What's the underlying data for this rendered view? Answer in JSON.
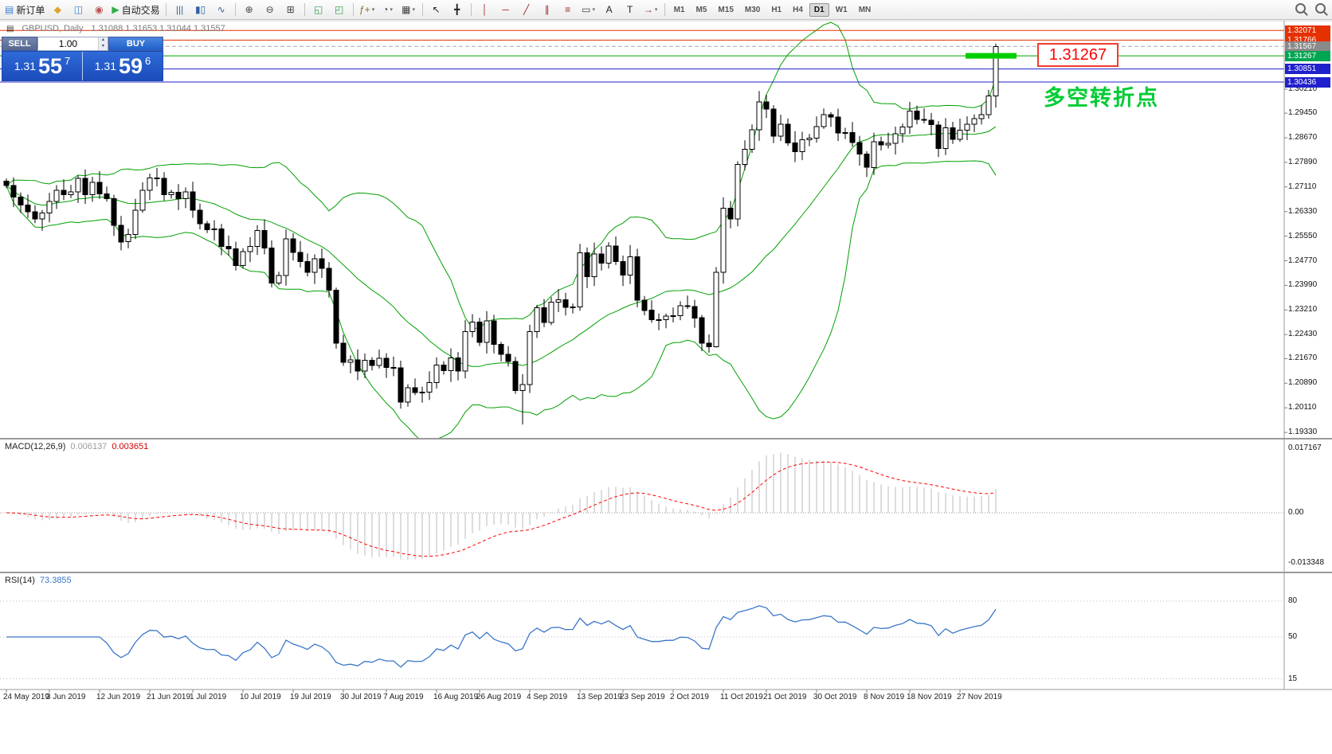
{
  "icons": {
    "caret_up": "▴",
    "caret_down": "▾",
    "symbol_glyph": "▤"
  },
  "toolbar": {
    "groups": [
      {
        "items": [
          {
            "base": "new-order",
            "glyph": "▤",
            "color": "#3f7fd2",
            "label": "新订单"
          },
          {
            "base": "chart-profiles",
            "glyph": "◆",
            "color": "#e0a42c"
          },
          {
            "base": "market-watch",
            "glyph": "◫",
            "color": "#3f7fd2"
          },
          {
            "base": "data-window",
            "glyph": "◉",
            "color": "#c05050"
          },
          {
            "base": "autotrading",
            "glyph": "▶",
            "color": "#2fae4a",
            "label": "自动交易"
          }
        ]
      },
      {
        "items": [
          {
            "base": "bar-chart",
            "glyph": "|||",
            "color": "#33619e"
          },
          {
            "base": "candlestick-chart",
            "glyph": "▮▯",
            "color": "#33619e"
          },
          {
            "base": "line-chart",
            "glyph": "∿",
            "color": "#33619e"
          }
        ]
      },
      {
        "items": [
          {
            "base": "zoom-in",
            "glyph": "⊕",
            "color": "#444"
          },
          {
            "base": "zoom-out",
            "glyph": "⊖",
            "color": "#444"
          },
          {
            "base": "tile-windows",
            "glyph": "⊞",
            "color": "#444"
          }
        ]
      },
      {
        "items": [
          {
            "base": "auto-scroll",
            "glyph": "◱",
            "color": "#2e9e4a"
          },
          {
            "base": "chart-shift",
            "glyph": "◰",
            "color": "#2e9e4a"
          }
        ]
      },
      {
        "items": [
          {
            "base": "indicators",
            "glyph": "ƒ+",
            "color": "#8a6d1f",
            "caret": true
          },
          {
            "base": "periods",
            "glyph": "◔",
            "color": "#444",
            "caret": true
          },
          {
            "base": "templates",
            "glyph": "▦",
            "color": "#444",
            "caret": true
          }
        ]
      },
      {
        "items": [
          {
            "base": "cursor",
            "glyph": "↖",
            "color": "#222"
          },
          {
            "base": "crosshair",
            "glyph": "╋",
            "color": "#222"
          }
        ]
      },
      {
        "items": [
          {
            "base": "vertical-line",
            "glyph": "│",
            "color": "#a02828"
          },
          {
            "base": "horizontal-line",
            "glyph": "─",
            "color": "#a02828"
          },
          {
            "base": "trendline",
            "glyph": "╱",
            "color": "#a02828"
          },
          {
            "base": "equidistant-channel",
            "glyph": "∥",
            "color": "#a02828"
          },
          {
            "base": "fibonacci",
            "glyph": "≡",
            "color": "#a02828"
          },
          {
            "base": "shapes",
            "glyph": "▭",
            "color": "#444",
            "caret": true
          },
          {
            "base": "text",
            "glyph": "A",
            "color": "#222"
          },
          {
            "base": "text-label",
            "glyph": "T",
            "color": "#222"
          },
          {
            "base": "arrow-tools",
            "glyph": "→",
            "color": "#a02828",
            "caret": true
          }
        ]
      }
    ],
    "timeframes": [
      "M1",
      "M5",
      "M15",
      "M30",
      "H1",
      "H4",
      "D1",
      "W1",
      "MN"
    ],
    "active_timeframe": "D1",
    "right_icons": [
      {
        "base": "search"
      },
      {
        "base": "quick-zoom"
      }
    ]
  },
  "symbol": {
    "title": "GBPUSD, Daily",
    "ohlc": "1.31088 1.31653 1.31044 1.31557"
  },
  "trade_panel": {
    "sell_label": "SELL",
    "buy_label": "BUY",
    "volume": "1.00",
    "sell_price_main": "1.31",
    "sell_price_big": "55",
    "sell_price_sup": "7",
    "buy_price_main": "1.31",
    "buy_price_big": "59",
    "buy_price_sup": "6"
  },
  "annotation": {
    "price_box": "1.31267",
    "text": "多空转折点",
    "text_color": "#00CC33",
    "box_border_color": "#F23B2F",
    "highlight": {
      "price": 1.31267,
      "color": "#00CE00"
    }
  },
  "levels": [
    {
      "label": "1.32071",
      "price": 1.32071,
      "line_color": "#E53000",
      "tag_color": "#E53000",
      "style": "solid"
    },
    {
      "label": "1.31766",
      "price": 1.31766,
      "line_color": "#E53000",
      "tag_color": "#E53000",
      "style": "solid"
    },
    {
      "label": "1.31567",
      "price": 1.31567,
      "line_color": "#A8A8A8",
      "tag_color": "#8a8a8a",
      "style": "dashed"
    },
    {
      "label": "1.31267",
      "price": 1.31267,
      "line_color": "#00A000",
      "tag_color": "#00A651",
      "style": "solid"
    },
    {
      "label": "1.30851",
      "price": 1.30851,
      "line_color": "#2020CC",
      "tag_color": "#2020CC",
      "style": "solid"
    },
    {
      "label": "1.30436",
      "price": 1.30436,
      "line_color": "#2020CC",
      "tag_color": "#2020CC",
      "style": "solid"
    }
  ],
  "price_scale": {
    "ticks": [
      "1.30210",
      "1.29450",
      "1.28670",
      "1.27890",
      "1.27110",
      "1.26330",
      "1.25550",
      "1.24770",
      "1.23990",
      "1.23210",
      "1.22430",
      "1.21670",
      "1.20890",
      "1.20110",
      "1.19330"
    ]
  },
  "macd": {
    "name": "MACD(12,26,9)",
    "value1": "0.006137",
    "value2": "0.003651",
    "histogram_color": "#bbbbbb",
    "signal_color": "#ff0000",
    "scale": [
      {
        "text": "0.017167",
        "v": 0.017167
      },
      {
        "text": "0.00",
        "v": 0
      },
      {
        "text": "-0.013348",
        "v": -0.013348
      }
    ]
  },
  "rsi": {
    "name": "RSI(14)",
    "value": "73.3855",
    "line_color": "#3A76C8",
    "scale": [
      {
        "text": "80",
        "v": 80
      },
      {
        "text": "50",
        "v": 50
      },
      {
        "text": "15",
        "v": 15
      }
    ]
  },
  "dates": {
    "labels": [
      "24 May 2019",
      "3 Jun 2019",
      "12 Jun 2019",
      "21 Jun 2019",
      "1 Jul 2019",
      "10 Jul 2019",
      "19 Jul 2019",
      "30 Jul 2019",
      "7 Aug 2019",
      "16 Aug 2019",
      "26 Aug 2019",
      "4 Sep 2019",
      "13 Sep 2019",
      "23 Sep 2019",
      "2 Oct 2019",
      "11 Oct 2019",
      "21 Oct 2019",
      "30 Oct 2019",
      "8 Nov 2019",
      "18 Nov 2019",
      "27 Nov 2019"
    ],
    "indices": [
      0,
      6,
      13,
      20,
      26,
      33,
      40,
      47,
      53,
      60,
      66,
      73,
      80,
      86,
      93,
      100,
      106,
      113,
      120,
      126,
      133
    ]
  },
  "chart_data": {
    "type": "candlestick",
    "symbol": "GBPUSD",
    "timeframe": "Daily",
    "current_ohlc": {
      "open": "1.31088",
      "high": "1.31653",
      "low": "1.31044",
      "close": "1.31557"
    },
    "open_first": 1.273,
    "closes": [
      1.2715,
      1.2679,
      1.2654,
      1.2632,
      1.2609,
      1.2629,
      1.2665,
      1.2701,
      1.2687,
      1.2695,
      1.2738,
      1.2686,
      1.2726,
      1.2689,
      1.2674,
      1.2589,
      1.2537,
      1.256,
      1.2637,
      1.2701,
      1.274,
      1.2738,
      1.2687,
      1.2694,
      1.2674,
      1.2695,
      1.2637,
      1.2594,
      1.2576,
      1.2578,
      1.2523,
      1.2515,
      1.2462,
      1.2506,
      1.2523,
      1.2573,
      1.2518,
      1.2407,
      1.243,
      1.2546,
      1.2503,
      1.2475,
      1.244,
      1.2484,
      1.2453,
      1.2384,
      1.2216,
      1.2155,
      1.2163,
      1.2127,
      1.2162,
      1.2145,
      1.2168,
      1.2139,
      1.2138,
      1.2029,
      1.2075,
      1.2059,
      1.2061,
      1.2091,
      1.2147,
      1.2129,
      1.2169,
      1.2128,
      1.2252,
      1.2283,
      1.2218,
      1.2286,
      1.2212,
      1.218,
      1.2158,
      1.2065,
      1.2085,
      1.2253,
      1.2328,
      1.2281,
      1.2346,
      1.2353,
      1.2329,
      1.2331,
      1.2502,
      1.2427,
      1.2499,
      1.247,
      1.2524,
      1.2475,
      1.2432,
      1.249,
      1.2352,
      1.232,
      1.229,
      1.229,
      1.2302,
      1.2303,
      1.2334,
      1.2332,
      1.2296,
      1.2216,
      1.2205,
      1.2441,
      1.2644,
      1.261,
      1.2782,
      1.283,
      1.2892,
      1.298,
      1.2958,
      1.2872,
      1.291,
      1.2851,
      1.2823,
      1.2861,
      1.2866,
      1.2903,
      1.294,
      1.2933,
      1.2882,
      1.2884,
      1.2852,
      1.2815,
      1.2773,
      1.2855,
      1.2844,
      1.2849,
      1.288,
      1.2901,
      1.2952,
      1.2925,
      1.2922,
      1.2908,
      1.2833,
      1.2899,
      1.2862,
      1.2891,
      1.291,
      1.2928,
      1.294,
      1.2999,
      1.31557
    ],
    "wick_overrides": {
      "72": {
        "low": 1.1958
      },
      "99": {
        "low": 1.2202
      },
      "138": {
        "high": 1.31653
      }
    },
    "indicators": {
      "bollinger": {
        "period": 20,
        "deviation": 2,
        "color": "#00A000"
      },
      "macd": {
        "fast": 12,
        "slow": 26,
        "signal": 9
      },
      "rsi": {
        "period": 14
      }
    },
    "bull_color": "#ffffff",
    "bear_color": "#000000",
    "outline_color": "#000000"
  }
}
